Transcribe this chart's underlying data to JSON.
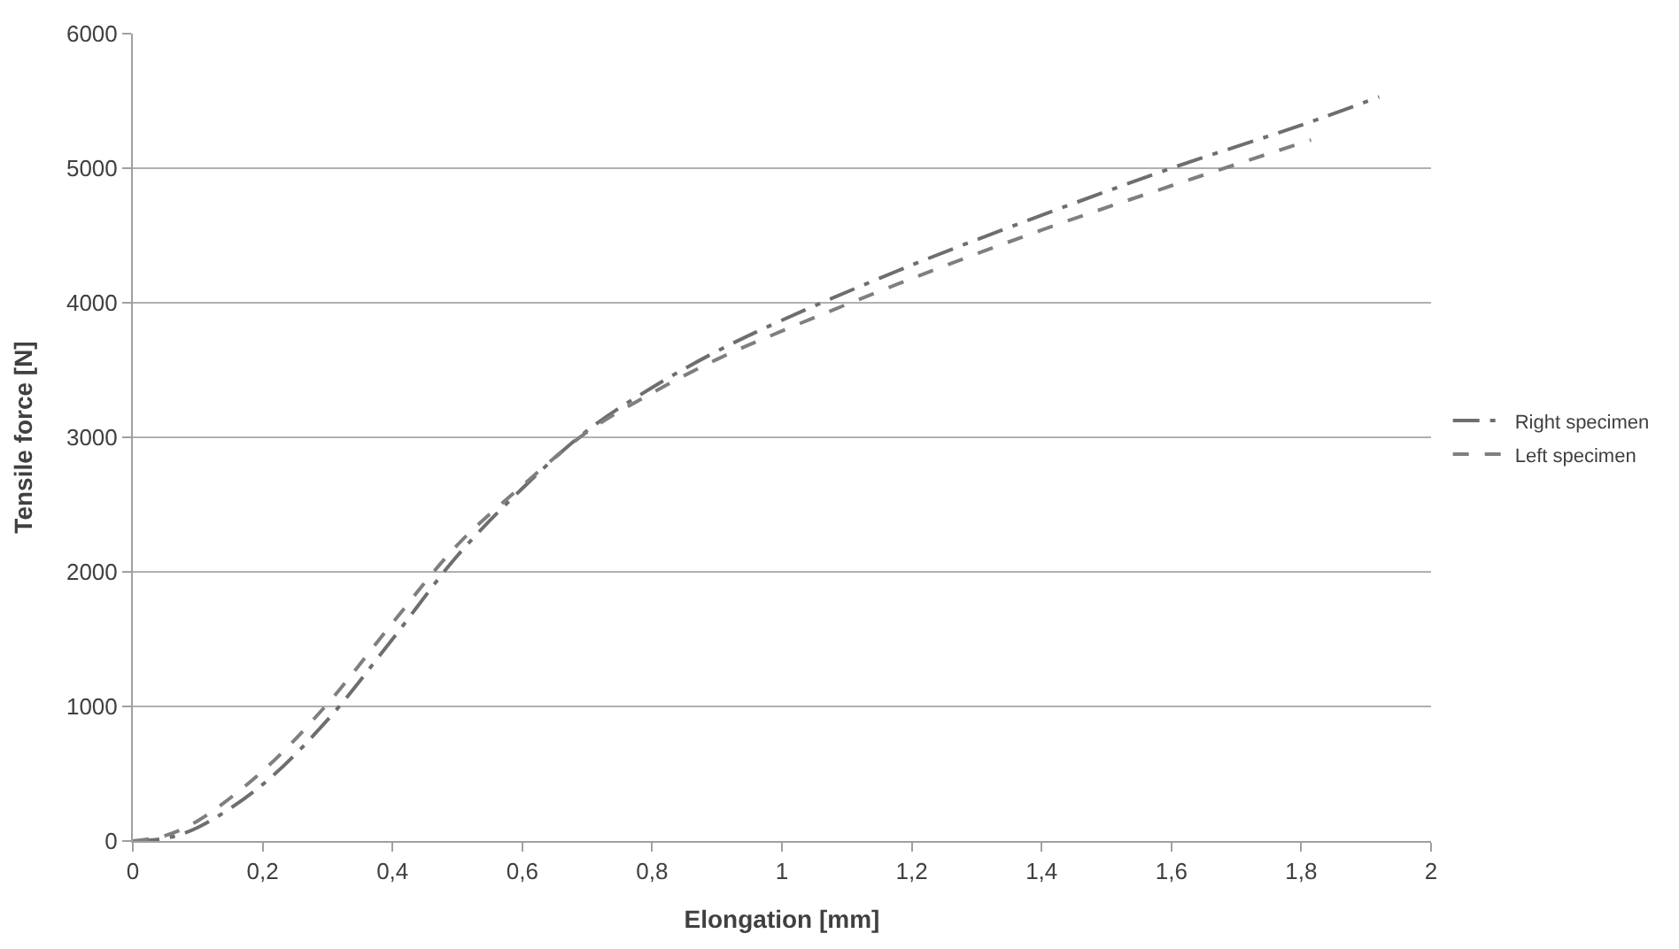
{
  "chart_data": {
    "type": "line",
    "xlabel": "Elongation [mm]",
    "ylabel": "Tensile force [N]",
    "xlim": [
      0,
      2
    ],
    "xticks": [
      {
        "value": 0,
        "label": "0"
      },
      {
        "value": 0.2,
        "label": "0,2"
      },
      {
        "value": 0.4,
        "label": "0,4"
      },
      {
        "value": 0.6,
        "label": "0,6"
      },
      {
        "value": 0.8,
        "label": "0,8"
      },
      {
        "value": 1,
        "label": "1"
      },
      {
        "value": 1.2,
        "label": "1,2"
      },
      {
        "value": 1.4,
        "label": "1,4"
      },
      {
        "value": 1.6,
        "label": "1,6"
      },
      {
        "value": 1.8,
        "label": "1,8"
      },
      {
        "value": 2,
        "label": "2"
      }
    ],
    "ylim": [
      0,
      6000
    ],
    "yticks": [
      0,
      1000,
      2000,
      3000,
      4000,
      5000,
      6000
    ],
    "grid": "y",
    "legend": "right",
    "marker": "none",
    "series": [
      {
        "name": "Right specimen",
        "color": "#6e6e6e",
        "line_style": "dashdot",
        "x": [
          0,
          0.05,
          0.1,
          0.2,
          0.3,
          0.4,
          0.5,
          0.6,
          0.7,
          0.8,
          0.9,
          1.0,
          1.2,
          1.4,
          1.6,
          1.8,
          1.92
        ],
        "values": [
          0,
          20,
          100,
          420,
          900,
          1500,
          2120,
          2620,
          3050,
          3370,
          3640,
          3870,
          4280,
          4650,
          5000,
          5320,
          5530
        ]
      },
      {
        "name": "Left specimen",
        "color": "#7f7f7f",
        "line_style": "dashed",
        "x": [
          0,
          0.05,
          0.1,
          0.2,
          0.3,
          0.4,
          0.5,
          0.6,
          0.7,
          0.8,
          0.9,
          1.0,
          1.2,
          1.4,
          1.6,
          1.815
        ],
        "values": [
          0,
          40,
          150,
          520,
          1020,
          1620,
          2200,
          2640,
          3040,
          3330,
          3580,
          3790,
          4180,
          4540,
          4870,
          5210
        ]
      }
    ]
  }
}
